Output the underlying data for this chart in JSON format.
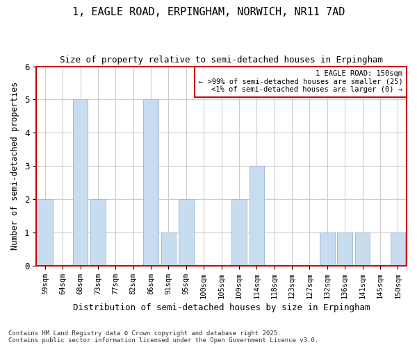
{
  "title1": "1, EAGLE ROAD, ERPINGHAM, NORWICH, NR11 7AD",
  "title2": "Size of property relative to semi-detached houses in Erpingham",
  "xlabel": "Distribution of semi-detached houses by size in Erpingham",
  "ylabel": "Number of semi-detached properties",
  "categories": [
    "59sqm",
    "64sqm",
    "68sqm",
    "73sqm",
    "77sqm",
    "82sqm",
    "86sqm",
    "91sqm",
    "95sqm",
    "100sqm",
    "105sqm",
    "109sqm",
    "114sqm",
    "118sqm",
    "123sqm",
    "127sqm",
    "132sqm",
    "136sqm",
    "141sqm",
    "145sqm",
    "150sqm"
  ],
  "values": [
    2,
    0,
    5,
    2,
    0,
    0,
    5,
    1,
    2,
    0,
    0,
    2,
    3,
    0,
    0,
    0,
    1,
    1,
    1,
    0,
    1
  ],
  "bar_color": "#c8dcf0",
  "bar_edge_color": "#a0bcd8",
  "ylim": [
    0,
    6
  ],
  "yticks": [
    0,
    1,
    2,
    3,
    4,
    5,
    6
  ],
  "legend_title": "1 EAGLE ROAD: 150sqm",
  "legend_line1": "← >99% of semi-detached houses are smaller (25)",
  "legend_line2": "<1% of semi-detached houses are larger (0) →",
  "legend_box_facecolor": "#ffffff",
  "legend_box_edgecolor": "#cc0000",
  "footnote1": "Contains HM Land Registry data © Crown copyright and database right 2025.",
  "footnote2": "Contains public sector information licensed under the Open Government Licence v3.0.",
  "background_color": "#ffffff",
  "plot_bg_color": "#ffffff",
  "grid_color": "#cccccc",
  "axes_border_color": "#cc0000",
  "title1_fontsize": 11,
  "title2_fontsize": 9
}
